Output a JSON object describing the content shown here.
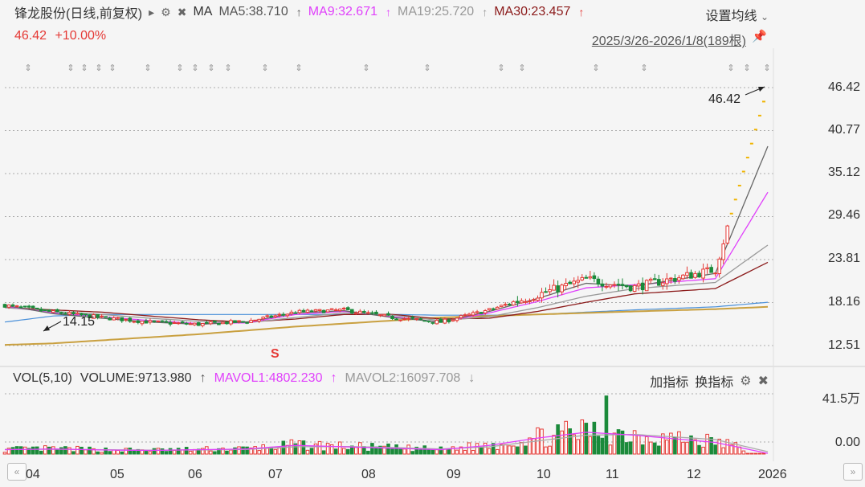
{
  "header": {
    "title": "锋龙股份(日线,前复权)",
    "ma_label": "MA",
    "ma5": "MA5:38.710",
    "ma9": "MA9:32.671",
    "ma19": "MA19:25.720",
    "ma30": "MA30:23.457",
    "settings_label": "设置均线"
  },
  "quote": {
    "price": "46.42",
    "change": "+10.00%"
  },
  "range_label": "2025/3/26-2026/1/8(189根)",
  "annotations": {
    "high": "46.42",
    "low": "14.15",
    "marker": "S"
  },
  "volume": {
    "vol_label": "VOL(5,10)",
    "volume_text": "VOLUME:9713.980",
    "mavol1": "MAVOL1:4802.230",
    "mavol2": "MAVOL2:16097.708",
    "add_indicator": "加指标",
    "switch_indicator": "换指标",
    "ytick_top": "41.5万",
    "ytick_bottom": "0.00"
  },
  "colors": {
    "up": "#e53935",
    "down": "#1b8a3a",
    "ma5": "#666666",
    "ma9": "#e040fb",
    "ma19": "#999999",
    "ma30": "#8b1a1a",
    "blue_line": "#4a90d9",
    "gold_line": "#c9a040"
  },
  "icons": [
    "play-icon",
    "gear-icon",
    "close-icon",
    "chevron-down-icon",
    "pin-icon",
    "nav-left-icon",
    "nav-right-icon"
  ],
  "chart_data": {
    "type": "candlestick",
    "xticks": [
      "04",
      "05",
      "06",
      "07",
      "08",
      "09",
      "10",
      "11",
      "12",
      "2026"
    ],
    "yticks": [
      "46.42",
      "40.77",
      "35.12",
      "29.46",
      "23.81",
      "18.16",
      "12.51"
    ],
    "ylim": [
      12.51,
      46.42
    ],
    "grid": true,
    "x_dates": [
      "2025-03-26",
      "2025-04-30",
      "2025-05-30",
      "2025-06-30",
      "2025-07-31",
      "2025-08-29",
      "2025-09-30",
      "2025-10-31",
      "2025-11-28",
      "2025-12-31",
      "2026-01-08"
    ],
    "close_path": [
      17.8,
      16.9,
      16.2,
      15.6,
      15.3,
      15.7,
      16.9,
      17.2,
      16.2,
      15.6,
      17.2,
      19.2,
      21.2,
      20.2,
      22.5,
      46.42
    ],
    "close_path_x": [
      0,
      12,
      24,
      36,
      48,
      60,
      72,
      84,
      96,
      108,
      120,
      132,
      144,
      156,
      176,
      189
    ],
    "ma5": [
      17.8,
      16.7,
      16.1,
      15.6,
      15.3,
      15.6,
      16.8,
      17.1,
      16.2,
      15.6,
      17.0,
      18.7,
      20.7,
      20.3,
      22.0,
      38.71
    ],
    "ma9": [
      17.7,
      16.8,
      16.3,
      15.8,
      15.4,
      15.5,
      16.6,
      17.0,
      16.3,
      15.6,
      16.8,
      18.3,
      20.1,
      20.5,
      21.3,
      32.671
    ],
    "ma19": [
      17.5,
      17.0,
      16.6,
      16.1,
      15.7,
      15.5,
      16.2,
      16.8,
      16.5,
      15.8,
      16.3,
      17.5,
      19.0,
      20.0,
      20.8,
      25.72
    ],
    "ma30": [
      17.5,
      17.2,
      16.9,
      16.4,
      15.9,
      15.6,
      16.0,
      16.6,
      16.6,
      16.0,
      16.1,
      17.0,
      18.2,
      19.3,
      20.0,
      23.457
    ],
    "ma_x": [
      0,
      12,
      24,
      36,
      48,
      60,
      72,
      84,
      96,
      108,
      120,
      132,
      144,
      156,
      176,
      189
    ],
    "blue_line": [
      15.6,
      16.4,
      16.6,
      16.6,
      16.6,
      16.6,
      16.6,
      16.6,
      16.6,
      16.5,
      16.5,
      16.6,
      16.9,
      17.2,
      17.6,
      18.2
    ],
    "gold_line": [
      12.6,
      12.8,
      13.2,
      13.6,
      14.0,
      14.5,
      15.0,
      15.4,
      15.8,
      16.2,
      16.4,
      16.6,
      16.8,
      17.0,
      17.3,
      17.6
    ],
    "volume": {
      "ylim": [
        0,
        415000
      ],
      "mavol_path": [
        30000,
        35000,
        28000,
        25000,
        30000,
        35000,
        60000,
        50000,
        40000,
        30000,
        60000,
        110000,
        150000,
        130000,
        80000,
        4802
      ],
      "mavol2_path": [
        32000,
        33000,
        30000,
        27000,
        28000,
        32000,
        50000,
        52000,
        45000,
        35000,
        50000,
        90000,
        130000,
        135000,
        100000,
        16098
      ]
    }
  }
}
